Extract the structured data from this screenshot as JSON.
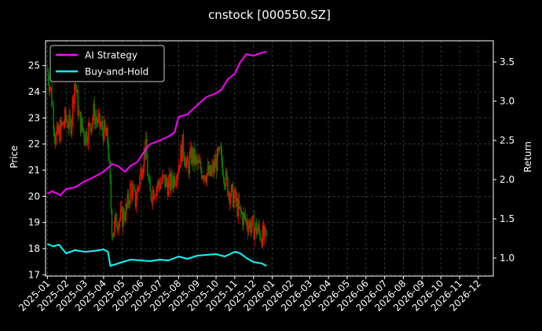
{
  "chart_data": {
    "type": "line",
    "title": "cnstock [000550.SZ]",
    "xlabel": "",
    "ylabel_left": "Price",
    "ylabel_right": "Return",
    "grid": true,
    "legend_position": "top-left",
    "x_tick_labels": [
      "2025-01",
      "2025-02",
      "2025-03",
      "2025-04",
      "2025-05",
      "2025-06",
      "2025-07",
      "2025-08",
      "2025-09",
      "2025-10",
      "2025-11",
      "2025-12",
      "2026-01",
      "2026-02",
      "2026-03",
      "2026-04",
      "2026-05",
      "2026-06",
      "2026-07",
      "2026-08",
      "2026-09",
      "2026-10",
      "2026-11",
      "2026-12"
    ],
    "y_left": {
      "ticks": [
        17,
        18,
        19,
        20,
        21,
        22,
        23,
        24,
        25
      ],
      "lim": [
        16.95,
        25.95
      ]
    },
    "y_right": {
      "ticks": [
        1.0,
        1.5,
        2.0,
        2.5,
        3.0,
        3.5
      ],
      "lim": [
        0.77,
        3.77
      ]
    },
    "x_lim_months": [
      -0.1,
      23.8
    ],
    "colors": {
      "up": "#ff0000",
      "down": "#008000",
      "strategy": "#ff00ff",
      "buyhold": "#00ffff",
      "grid": "#555555",
      "frame": "#ffffff"
    },
    "series": [
      {
        "name": "AI Strategy",
        "axis": "right",
        "color": "#ff00ff",
        "x": [
          "2025-01-01",
          "2025-01-08",
          "2025-01-15",
          "2025-01-22",
          "2025-02-01",
          "2025-02-15",
          "2025-03-01",
          "2025-03-15",
          "2025-04-01",
          "2025-04-08",
          "2025-04-15",
          "2025-04-25",
          "2025-05-05",
          "2025-05-15",
          "2025-05-25",
          "2025-06-01",
          "2025-06-15",
          "2025-07-01",
          "2025-07-15",
          "2025-07-25",
          "2025-08-01",
          "2025-08-15",
          "2025-09-01",
          "2025-09-15",
          "2025-10-01",
          "2025-10-10",
          "2025-10-20",
          "2025-11-01",
          "2025-11-10",
          "2025-11-20",
          "2025-12-01",
          "2025-12-15",
          "2025-12-22"
        ],
        "y": [
          1.82,
          1.85,
          1.83,
          1.8,
          1.88,
          1.9,
          1.98,
          2.03,
          2.1,
          2.15,
          2.2,
          2.17,
          2.1,
          2.18,
          2.22,
          2.3,
          2.45,
          2.5,
          2.55,
          2.6,
          2.8,
          2.83,
          2.95,
          3.05,
          3.1,
          3.15,
          3.28,
          3.35,
          3.5,
          3.6,
          3.58,
          3.62,
          3.63
        ]
      },
      {
        "name": "Buy-and-Hold",
        "axis": "right",
        "color": "#00ffff",
        "x": [
          "2025-01-01",
          "2025-01-10",
          "2025-01-20",
          "2025-02-01",
          "2025-02-15",
          "2025-03-01",
          "2025-03-15",
          "2025-04-01",
          "2025-04-08",
          "2025-04-12",
          "2025-04-20",
          "2025-05-01",
          "2025-05-15",
          "2025-06-01",
          "2025-06-15",
          "2025-07-01",
          "2025-07-15",
          "2025-08-01",
          "2025-08-15",
          "2025-09-01",
          "2025-09-15",
          "2025-10-01",
          "2025-10-15",
          "2025-11-01",
          "2025-11-10",
          "2025-11-20",
          "2025-12-01",
          "2025-12-15",
          "2025-12-22"
        ],
        "y": [
          1.18,
          1.15,
          1.17,
          1.06,
          1.1,
          1.08,
          1.09,
          1.11,
          1.08,
          0.9,
          0.92,
          0.95,
          0.98,
          0.97,
          0.96,
          0.98,
          0.97,
          1.02,
          0.99,
          1.03,
          1.04,
          1.05,
          1.02,
          1.08,
          1.06,
          1.0,
          0.95,
          0.93,
          0.9
        ]
      }
    ],
    "price": {
      "axis": "left",
      "x": [
        "2025-01-01",
        "2025-01-07",
        "2025-01-14",
        "2025-01-21",
        "2025-02-01",
        "2025-02-08",
        "2025-02-15",
        "2025-02-22",
        "2025-03-01",
        "2025-03-08",
        "2025-03-15",
        "2025-03-22",
        "2025-04-01",
        "2025-04-08",
        "2025-04-15",
        "2025-04-22",
        "2025-05-01",
        "2025-05-08",
        "2025-05-15",
        "2025-05-22",
        "2025-06-01",
        "2025-06-08",
        "2025-06-15",
        "2025-06-22",
        "2025-07-01",
        "2025-07-08",
        "2025-07-15",
        "2025-07-22",
        "2025-08-01",
        "2025-08-08",
        "2025-08-15",
        "2025-08-22",
        "2025-09-01",
        "2025-09-08",
        "2025-09-15",
        "2025-09-22",
        "2025-10-01",
        "2025-10-08",
        "2025-10-15",
        "2025-10-22",
        "2025-11-01",
        "2025-11-08",
        "2025-11-15",
        "2025-11-22",
        "2025-12-01",
        "2025-12-08",
        "2025-12-15",
        "2025-12-22"
      ],
      "y": [
        24.8,
        24.0,
        22.2,
        22.5,
        23.0,
        22.6,
        24.5,
        23.0,
        22.3,
        22.6,
        23.2,
        22.8,
        22.5,
        22.1,
        18.6,
        19.1,
        19.2,
        19.5,
        20.4,
        19.8,
        21.0,
        22.0,
        20.0,
        20.3,
        20.5,
        20.6,
        20.4,
        20.6,
        21.2,
        22.0,
        21.0,
        21.6,
        21.2,
        21.0,
        20.9,
        20.8,
        21.3,
        21.6,
        20.8,
        20.2,
        19.9,
        19.4,
        19.2,
        19.0,
        18.8,
        18.7,
        18.5,
        18.3
      ]
    }
  }
}
